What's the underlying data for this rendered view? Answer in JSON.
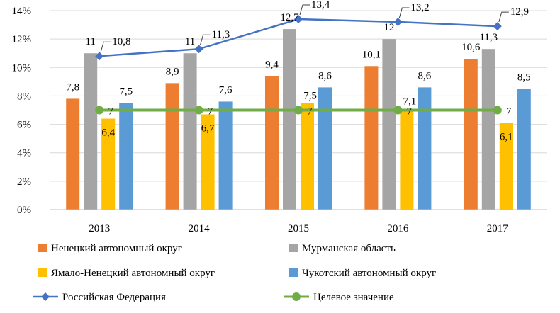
{
  "chart_data": {
    "type": "bar",
    "title": "",
    "xlabel": "",
    "ylabel": "",
    "categories": [
      "2013",
      "2014",
      "2015",
      "2016",
      "2017"
    ],
    "ylim": [
      0,
      14
    ],
    "yticks": [
      0,
      2,
      4,
      6,
      8,
      10,
      12,
      14
    ],
    "ytick_labels": [
      "0%",
      "2%",
      "4%",
      "6%",
      "8%",
      "10%",
      "12%",
      "14%"
    ],
    "grid": true,
    "legend_position": "bottom",
    "series": [
      {
        "name": "Ненецкий автономный округ",
        "kind": "bar",
        "color": "#ED7D31",
        "values": [
          7.8,
          8.9,
          9.4,
          10.1,
          10.6
        ],
        "labels": [
          "7,8",
          "8,9",
          "9,4",
          "10,1",
          "10,6"
        ]
      },
      {
        "name": "Мурманская область",
        "kind": "bar",
        "color": "#A5A5A5",
        "values": [
          11,
          11,
          12.7,
          12,
          11.3
        ],
        "labels": [
          "11",
          "11",
          "12,7",
          "12",
          "11,3"
        ]
      },
      {
        "name": "Ямало-Ненецкий автономный округ",
        "kind": "bar",
        "color": "#FFC000",
        "values": [
          6.4,
          6.7,
          7.5,
          7.1,
          6.1
        ],
        "labels": [
          "6,4",
          "6,7",
          "7,5",
          "7,1",
          "6,1"
        ]
      },
      {
        "name": "Чукотский автономный округ",
        "kind": "bar",
        "color": "#5B9BD5",
        "values": [
          7.5,
          7.6,
          8.6,
          8.6,
          8.5
        ],
        "labels": [
          "7,5",
          "7,6",
          "8,6",
          "8,6",
          "8,5"
        ]
      },
      {
        "name": "Российская Федерация",
        "kind": "line",
        "marker": "diamond",
        "color": "#4472C4",
        "values": [
          10.8,
          11.3,
          13.4,
          13.2,
          12.9
        ],
        "labels": [
          "10,8",
          "11,3",
          "13,4",
          "13,2",
          "12,9"
        ]
      },
      {
        "name": "Целевое значение",
        "kind": "line",
        "marker": "circle",
        "color": "#70AD47",
        "values": [
          7,
          7,
          7,
          7,
          7
        ],
        "labels": [
          "7",
          "7",
          "7",
          "7",
          "7"
        ]
      }
    ]
  }
}
